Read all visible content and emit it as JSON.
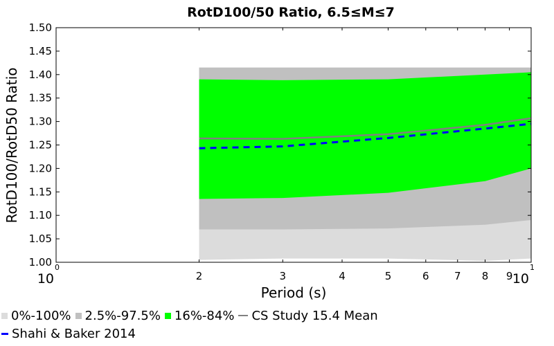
{
  "chart_data": {
    "type": "area",
    "title": "RotD100/50 Ratio, 6.5≤M≤7",
    "xlabel": "Period (s)",
    "ylabel": "RotD100/RotD50 Ratio",
    "xscale": "log",
    "xlim": [
      1,
      10
    ],
    "ylim": [
      1.0,
      1.5
    ],
    "yticks": [
      "1.00",
      "1.05",
      "1.10",
      "1.15",
      "1.20",
      "1.25",
      "1.30",
      "1.35",
      "1.40",
      "1.45",
      "1.50"
    ],
    "xticks": [
      {
        "value": 2,
        "label": "2"
      },
      {
        "value": 3,
        "label": "3"
      },
      {
        "value": 4,
        "label": "4"
      },
      {
        "value": 5,
        "label": "5"
      },
      {
        "value": 6,
        "label": "6"
      },
      {
        "value": 7,
        "label": "7"
      },
      {
        "value": 8,
        "label": "8"
      },
      {
        "value": 9,
        "label": "9"
      }
    ],
    "decade_labels": [
      {
        "value": 1,
        "base": "10",
        "exp": "0"
      },
      {
        "value": 10,
        "base": "10",
        "exp": "1"
      }
    ],
    "grid": false,
    "legend_position": "bottom",
    "x": [
      2,
      3,
      5,
      8,
      10
    ],
    "bands": [
      {
        "name": "0%-100%",
        "color": "#dcdcdc",
        "lower": [
          1.005,
          1.008,
          1.008,
          1.003,
          1.008
        ],
        "upper": [
          1.415,
          1.415,
          1.415,
          1.415,
          1.415
        ]
      },
      {
        "name": "2.5%-97.5%",
        "color": "#c0c0c0",
        "lower": [
          1.07,
          1.07,
          1.072,
          1.08,
          1.09
        ],
        "upper": [
          1.415,
          1.415,
          1.415,
          1.415,
          1.415
        ]
      },
      {
        "name": "16%-84%",
        "color": "#00ff00",
        "lower": [
          1.135,
          1.137,
          1.148,
          1.173,
          1.2
        ],
        "upper": [
          1.39,
          1.388,
          1.39,
          1.4,
          1.405
        ]
      }
    ],
    "series": [
      {
        "name": "CS Study 15.4 Mean",
        "color": "#808080",
        "style": "solid",
        "values": [
          1.264,
          1.263,
          1.273,
          1.293,
          1.307
        ]
      },
      {
        "name": "Shahi & Baker 2014",
        "color": "#0000ff",
        "style": "dashed",
        "values": [
          1.243,
          1.247,
          1.265,
          1.285,
          1.295
        ]
      }
    ]
  },
  "legend": {
    "rows": [
      [
        {
          "label": "0%-100%",
          "kind": "swatch",
          "color": "#dcdcdc"
        },
        {
          "label": "2.5%-97.5%",
          "kind": "swatch",
          "color": "#c0c0c0"
        },
        {
          "label": "16%-84%",
          "kind": "swatch",
          "color": "#00ff00"
        },
        {
          "label": "CS Study 15.4 Mean",
          "kind": "line",
          "color": "#808080"
        }
      ],
      [
        {
          "label": "Shahi & Baker 2014",
          "kind": "dash",
          "color": "#0000ff"
        }
      ]
    ]
  }
}
